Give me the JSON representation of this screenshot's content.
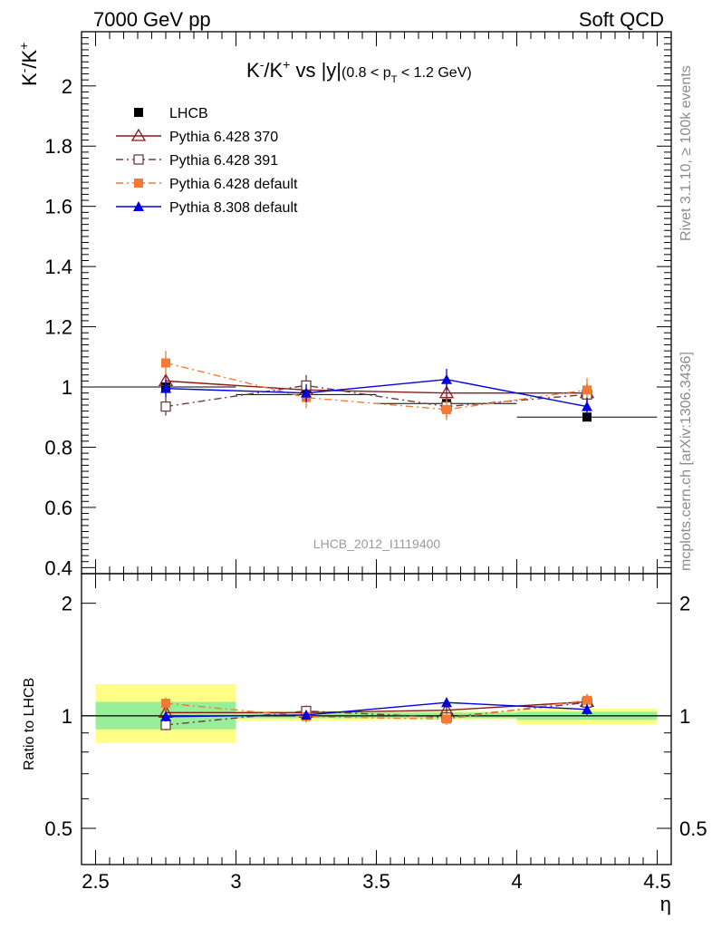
{
  "header": {
    "left": "7000 GeV pp",
    "right": "Soft QCD"
  },
  "side_labels": {
    "top": "Rivet 3.1.10, ≥ 100k events",
    "bottom": "mcplots.cern.ch [arXiv:1306.3436]"
  },
  "watermark": "LHCB_2012_I1119400",
  "chart_data": [
    {
      "type": "scatter",
      "title": "K⁻/K⁺ vs |y|(0.8 < pT < 1.2 GeV)",
      "title_parts": {
        "main": "K",
        "sup1": "-",
        "slash": "/K",
        "sup2": "+",
        "mid": " vs |y|",
        "paren": "(0.8 < p",
        "sub": "T",
        "tail": " < 1.2 GeV)"
      },
      "xlabel": "η",
      "ylabel": {
        "main": "K",
        "sup1": "-",
        "slash": "/K",
        "sup2": "+"
      },
      "xlim": [
        2.45,
        4.55
      ],
      "ylim": [
        0.38,
        2.18
      ],
      "yticks": [
        "0.4",
        "0.6",
        "0.8",
        "1",
        "1.2",
        "1.4",
        "1.6",
        "1.8",
        "2"
      ],
      "legend_position": "top-left",
      "series": [
        {
          "name": "LHCB",
          "color": "#000000",
          "marker": "filled-square",
          "line": "none",
          "x": [
            2.75,
            3.25,
            3.75,
            4.25
          ],
          "y": [
            1.0,
            0.975,
            0.945,
            0.9
          ],
          "yerr": [
            0.01,
            0.01,
            0.01,
            0.01
          ],
          "xerr": [
            0.25,
            0.25,
            0.25,
            0.25
          ]
        },
        {
          "name": "Pythia 6.428 370",
          "color": "#8b1a1a",
          "marker": "open-triangle",
          "line": "solid",
          "x": [
            2.75,
            3.25,
            3.75,
            4.25
          ],
          "y": [
            1.02,
            0.99,
            0.98,
            0.98
          ],
          "yerr": [
            0.025,
            0.03,
            0.03,
            0.03
          ]
        },
        {
          "name": "Pythia 6.428 391",
          "color": "#6e3f3f",
          "marker": "open-square",
          "line": "dashdot",
          "x": [
            2.75,
            3.25,
            3.75,
            4.25
          ],
          "y": [
            0.935,
            1.005,
            0.935,
            0.975
          ],
          "yerr": [
            0.03,
            0.035,
            0.035,
            0.035
          ]
        },
        {
          "name": "Pythia 6.428 default",
          "color": "#f47a33",
          "marker": "filled-square",
          "line": "dashdot",
          "x": [
            2.75,
            3.25,
            3.75,
            4.25
          ],
          "y": [
            1.08,
            0.965,
            0.925,
            0.99
          ],
          "yerr": [
            0.04,
            0.035,
            0.035,
            0.04
          ]
        },
        {
          "name": "Pythia 8.308 default",
          "color": "#0000e0",
          "marker": "filled-triangle",
          "line": "solid",
          "x": [
            2.75,
            3.25,
            3.75,
            4.25
          ],
          "y": [
            0.995,
            0.98,
            1.025,
            0.935
          ],
          "yerr": [
            0.03,
            0.03,
            0.035,
            0.03
          ]
        }
      ]
    },
    {
      "type": "scatter",
      "title": "",
      "xlabel": "η",
      "ylabel": "Ratio to LHCB",
      "xlim": [
        2.45,
        4.55
      ],
      "ylim": [
        0.4,
        2.4
      ],
      "yscale": "log",
      "xticks": [
        "2.5",
        "3",
        "3.5",
        "4",
        "4.5"
      ],
      "yticks": [
        "0.5",
        "1",
        "2"
      ],
      "bands": [
        {
          "x0": 2.5,
          "x1": 3.0,
          "inner": [
            0.92,
            1.09
          ],
          "outer": [
            0.845,
            1.215
          ]
        },
        {
          "x0": 3.0,
          "x1": 3.5,
          "inner": [
            0.985,
            1.02
          ],
          "outer": [
            0.97,
            1.03
          ]
        },
        {
          "x0": 3.5,
          "x1": 4.0,
          "inner": [
            0.985,
            1.02
          ],
          "outer": [
            0.975,
            1.03
          ]
        },
        {
          "x0": 4.0,
          "x1": 4.5,
          "inner": [
            0.975,
            1.025
          ],
          "outer": [
            0.95,
            1.045
          ]
        }
      ],
      "series": [
        {
          "name": "Pythia 6.428 370",
          "color": "#8b1a1a",
          "marker": "open-triangle",
          "line": "solid",
          "x": [
            2.75,
            3.25,
            3.75,
            4.25
          ],
          "y": [
            1.02,
            1.02,
            1.035,
            1.09
          ],
          "yerr": [
            0.025,
            0.03,
            0.03,
            0.035
          ]
        },
        {
          "name": "Pythia 6.428 391",
          "color": "#6e3f3f",
          "marker": "open-square",
          "line": "dashdot",
          "x": [
            2.75,
            3.25,
            3.75,
            4.25
          ],
          "y": [
            0.945,
            1.03,
            0.99,
            1.085
          ],
          "yerr": [
            0.03,
            0.035,
            0.035,
            0.04
          ]
        },
        {
          "name": "Pythia 6.428 default",
          "color": "#f47a33",
          "marker": "filled-square",
          "line": "dashdot",
          "x": [
            2.75,
            3.25,
            3.75,
            4.25
          ],
          "y": [
            1.08,
            0.995,
            0.98,
            1.1
          ],
          "yerr": [
            0.04,
            0.035,
            0.035,
            0.045
          ]
        },
        {
          "name": "Pythia 8.308 default",
          "color": "#0000e0",
          "marker": "filled-triangle",
          "line": "solid",
          "x": [
            2.75,
            3.25,
            3.75,
            4.25
          ],
          "y": [
            0.995,
            1.005,
            1.085,
            1.04
          ],
          "yerr": [
            0.03,
            0.03,
            0.035,
            0.035
          ]
        }
      ]
    }
  ]
}
